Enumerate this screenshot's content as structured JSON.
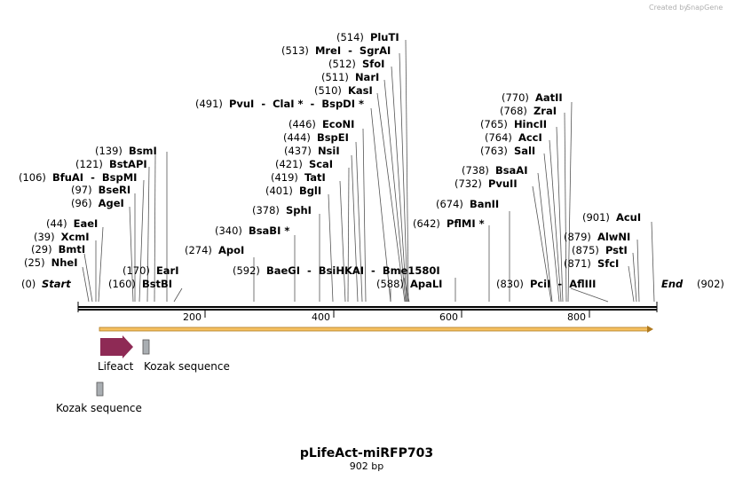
{
  "credit": {
    "prefix": "Created by",
    "brand": "SnapGene"
  },
  "plasmid": {
    "name": "pLifeAct-miRFP703",
    "length_label": "902 bp"
  },
  "map": {
    "start_pos": "(0)",
    "start_label": "Start",
    "end_label": "End",
    "end_pos": "(902)",
    "ticks": [
      "200",
      "400",
      "600",
      "800"
    ]
  },
  "sites": [
    {
      "pos": "(25)",
      "name": "NheI"
    },
    {
      "pos": "(29)",
      "name": "BmtI"
    },
    {
      "pos": "(39)",
      "name": "XcmI"
    },
    {
      "pos": "(44)",
      "name": "EaeI"
    },
    {
      "pos": "(96)",
      "name": "AgeI"
    },
    {
      "pos": "(97)",
      "name": "BseRI"
    },
    {
      "pos": "(106)",
      "name": "BfuAI  -  BspMI"
    },
    {
      "pos": "(121)",
      "name": "BstAPI"
    },
    {
      "pos": "(139)",
      "name": "BsmI"
    },
    {
      "pos": "(160)",
      "name": "BstBI"
    },
    {
      "pos": "(170)",
      "name": "EarI"
    },
    {
      "pos": "(274)",
      "name": "ApoI"
    },
    {
      "pos": "(340)",
      "name": "BsaBI *"
    },
    {
      "pos": "(378)",
      "name": "SphI"
    },
    {
      "pos": "(401)",
      "name": "BglI"
    },
    {
      "pos": "(419)",
      "name": "TatI"
    },
    {
      "pos": "(421)",
      "name": "ScaI"
    },
    {
      "pos": "(437)",
      "name": "NsiI"
    },
    {
      "pos": "(444)",
      "name": "BspEI"
    },
    {
      "pos": "(446)",
      "name": "EcoNI"
    },
    {
      "pos": "(491)",
      "name": "PvuI  -  ClaI *  -  BspDI *"
    },
    {
      "pos": "(510)",
      "name": "KasI"
    },
    {
      "pos": "(511)",
      "name": "NarI"
    },
    {
      "pos": "(512)",
      "name": "SfoI"
    },
    {
      "pos": "(513)",
      "name": "MreI  -  SgrAI"
    },
    {
      "pos": "(514)",
      "name": "PluTI"
    },
    {
      "pos": "(592)",
      "name": "BaeGI  -  BsiHKAI  -  Bme1580I"
    },
    {
      "pos": "(588)",
      "name": "ApaLI"
    },
    {
      "pos": "(642)",
      "name": "PflMI *"
    },
    {
      "pos": "(674)",
      "name": "BanII"
    },
    {
      "pos": "(732)",
      "name": "PvuII"
    },
    {
      "pos": "(738)",
      "name": "BsaAI"
    },
    {
      "pos": "(763)",
      "name": "SalI"
    },
    {
      "pos": "(764)",
      "name": "AccI"
    },
    {
      "pos": "(765)",
      "name": "HincII"
    },
    {
      "pos": "(768)",
      "name": "ZraI"
    },
    {
      "pos": "(770)",
      "name": "AatII"
    },
    {
      "pos": "(830)",
      "name": "PciI  -  AflIII"
    },
    {
      "pos": "(871)",
      "name": "SfcI"
    },
    {
      "pos": "(875)",
      "name": "PstI"
    },
    {
      "pos": "(879)",
      "name": "AlwNI"
    },
    {
      "pos": "(901)",
      "name": "AcuI"
    }
  ],
  "features": {
    "lifeact": "Lifeact",
    "kozak1": "Kozak sequence",
    "kozak2": "Kozak sequence"
  },
  "colors": {
    "backbone": "#000000",
    "orf_fill": "#f5c060",
    "orf_stroke": "#b07a20",
    "lifeact": "#8e2a55",
    "kozak": "#a9aeb2"
  }
}
